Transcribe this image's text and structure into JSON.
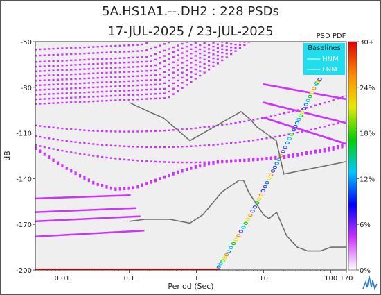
{
  "header": {
    "title": "5A.HS1A1.--.DH2 : 228 PSDs",
    "subtitle": "17-JUL-2025 / 23-JUL-2025"
  },
  "colorbar": {
    "label": "PSD PDF",
    "ticks": [
      "30+",
      "24%",
      "18%",
      "12%",
      "6%",
      "0%"
    ],
    "stops": [
      "#e00000",
      "#ff8800",
      "#e8e800",
      "#00d000",
      "#00c8ff",
      "#0000ff",
      "#cc33ff",
      "#ffffff"
    ]
  },
  "legend": {
    "title": "Baselines",
    "items": [
      "HNM",
      "LNM"
    ],
    "background": "#22ddee"
  },
  "colors": {
    "plot_bg": "#efefef",
    "pdf_main": "#cc33ff",
    "noise_model": "#707070"
  },
  "chart_data": {
    "type": "psd_pdf",
    "xlabel": "Period (Sec)",
    "ylabel": "dB",
    "x_scale": "log",
    "xlim": [
      0.004,
      170
    ],
    "ylim": [
      -200,
      -50
    ],
    "x_ticks": [
      {
        "value": 0.01,
        "label": "0.01"
      },
      {
        "value": 0.1,
        "label": "0.1"
      },
      {
        "value": 1,
        "label": "1"
      },
      {
        "value": 10,
        "label": "10"
      },
      {
        "value": 100,
        "label": "100"
      },
      {
        "value": 170,
        "label": "170"
      }
    ],
    "y_ticks": [
      -50,
      -80,
      -110,
      -140,
      -170,
      -200
    ],
    "nhnm": [
      [
        0.1,
        -90
      ],
      [
        0.22,
        -97
      ],
      [
        0.32,
        -100
      ],
      [
        0.8,
        -115
      ],
      [
        3.8,
        -98
      ],
      [
        4.6,
        -96
      ],
      [
        6.3,
        -101
      ],
      [
        7.9,
        -106
      ],
      [
        15.4,
        -115
      ],
      [
        20,
        -137
      ],
      [
        354.8,
        -126
      ]
    ],
    "nlnm": [
      [
        0.1,
        -168
      ],
      [
        0.17,
        -166.7
      ],
      [
        0.4,
        -166.7
      ],
      [
        0.8,
        -169.2
      ],
      [
        1.24,
        -163.7
      ],
      [
        2.4,
        -148.6
      ],
      [
        4.3,
        -141.1
      ],
      [
        5,
        -141.1
      ],
      [
        6,
        -149
      ],
      [
        10,
        -163.8
      ],
      [
        12,
        -166.2
      ],
      [
        15.6,
        -162.1
      ],
      [
        21.9,
        -177.5
      ],
      [
        31.6,
        -185
      ],
      [
        45,
        -187.5
      ],
      [
        70,
        -187.5
      ],
      [
        101,
        -185
      ],
      [
        170,
        -185
      ]
    ],
    "main_trend": [
      [
        0.004,
        -120
      ],
      [
        0.008,
        -129
      ],
      [
        0.015,
        -136
      ],
      [
        0.03,
        -143
      ],
      [
        0.06,
        -147
      ],
      [
        0.12,
        -146
      ],
      [
        0.25,
        -141
      ],
      [
        0.5,
        -136
      ],
      [
        1,
        -132
      ],
      [
        2,
        -129
      ],
      [
        5,
        -128
      ],
      [
        10,
        -127
      ],
      [
        20,
        -126
      ],
      [
        50,
        -123
      ],
      [
        100,
        -121
      ],
      [
        170,
        -118
      ]
    ],
    "instrument_line": [
      [
        2,
        -200
      ],
      [
        3,
        -188
      ],
      [
        5,
        -172
      ],
      [
        8,
        -156
      ],
      [
        12,
        -140
      ],
      [
        18,
        -125
      ],
      [
        28,
        -108
      ],
      [
        40,
        -94
      ],
      [
        60,
        -78
      ],
      [
        70,
        -74
      ]
    ]
  }
}
